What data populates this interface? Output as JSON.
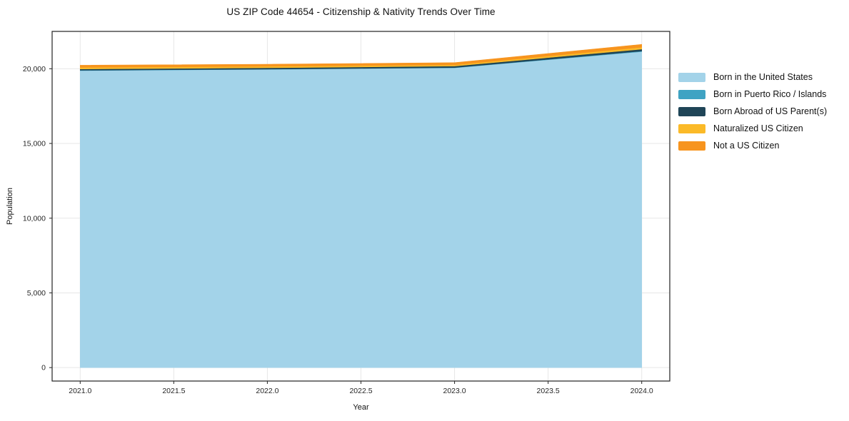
{
  "chart_data": {
    "type": "area",
    "title": "US ZIP Code 44654 - Citizenship & Nativity Trends Over Time",
    "xlabel": "Year",
    "ylabel": "Population",
    "x": [
      2021,
      2022,
      2023,
      2024
    ],
    "series": [
      {
        "name": "Born in the United States",
        "color": "#A3D3E9",
        "values": [
          19880,
          19960,
          20060,
          21150
        ]
      },
      {
        "name": "Born in Puerto Rico / Islands",
        "color": "#3FA3C3",
        "values": [
          15,
          15,
          20,
          30
        ]
      },
      {
        "name": "Born Abroad of US Parent(s)",
        "color": "#1F4557",
        "values": [
          90,
          90,
          100,
          130
        ]
      },
      {
        "name": "Naturalized US Citizen",
        "color": "#FBBA28",
        "values": [
          110,
          100,
          80,
          130
        ]
      },
      {
        "name": "Not a US Citizen",
        "color": "#F7941E",
        "values": [
          140,
          140,
          150,
          190
        ]
      }
    ],
    "x_ticks": [
      "2021.0",
      "2021.5",
      "2022.0",
      "2022.5",
      "2023.0",
      "2023.5",
      "2024.0"
    ],
    "x_tick_values": [
      2021.0,
      2021.5,
      2022.0,
      2022.5,
      2023.0,
      2023.5,
      2024.0
    ],
    "y_ticks": [
      "0",
      "5,000",
      "10,000",
      "15,000",
      "20,000"
    ],
    "y_tick_values": [
      0,
      5000,
      10000,
      15000,
      20000
    ],
    "xlim": [
      2020.85,
      2024.15
    ],
    "ylim": [
      -900,
      22500
    ],
    "grid": true,
    "legend_position": "right",
    "colors": {
      "grid": "#e7e7e7",
      "spine": "#222222",
      "tick": "#333333",
      "background": "#ffffff"
    }
  }
}
